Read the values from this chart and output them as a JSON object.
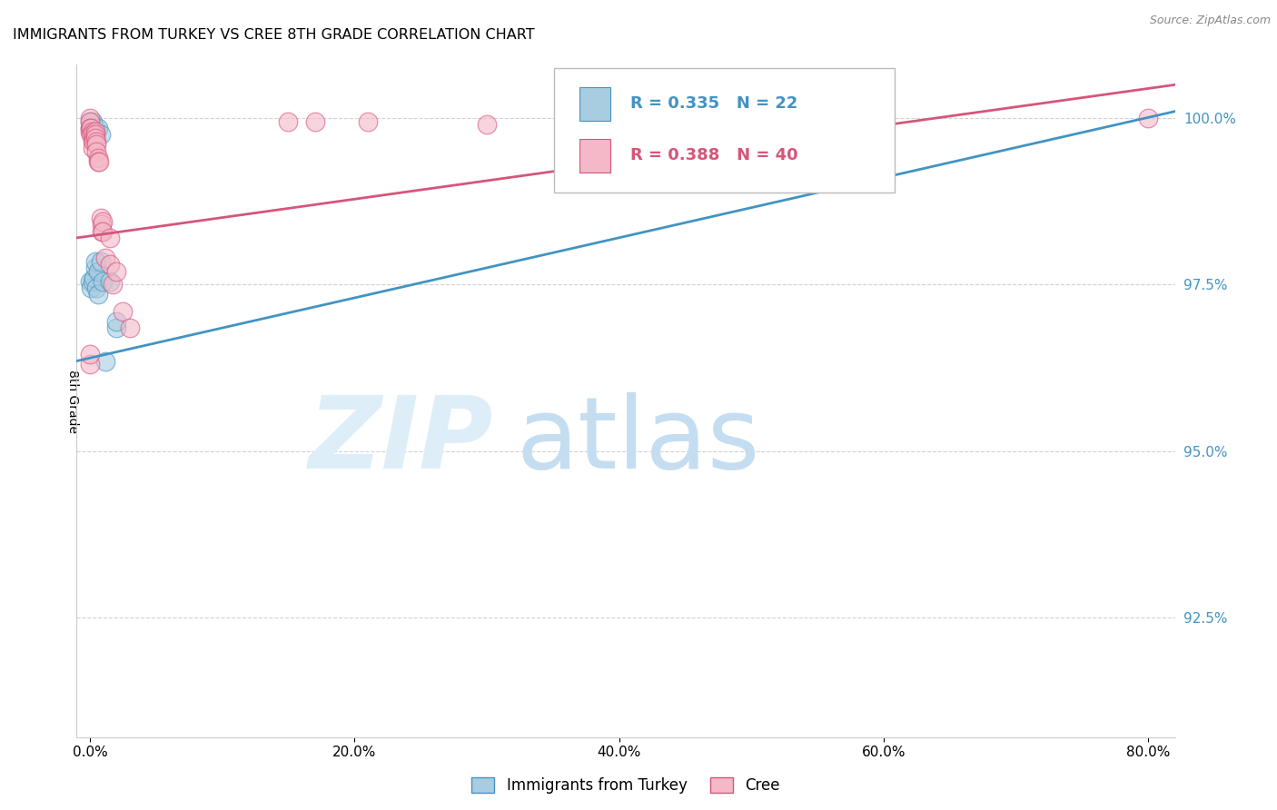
{
  "title": "IMMIGRANTS FROM TURKEY VS CREE 8TH GRADE CORRELATION CHART",
  "source": "Source: ZipAtlas.com",
  "xlim": [
    -0.01,
    0.82
  ],
  "ylim": [
    0.907,
    1.008
  ],
  "ylabel": "8th Grade",
  "x_tick_vals": [
    0.0,
    0.2,
    0.4,
    0.6,
    0.8
  ],
  "x_tick_labels": [
    "0.0%",
    "20.0%",
    "40.0%",
    "60.0%",
    "80.0%"
  ],
  "y_tick_vals": [
    0.925,
    0.95,
    0.975,
    1.0
  ],
  "y_tick_labels": [
    "92.5%",
    "95.0%",
    "97.5%",
    "100.0%"
  ],
  "legend_R_blue": "R = 0.335",
  "legend_N_blue": "N = 22",
  "legend_R_pink": "R = 0.388",
  "legend_N_pink": "N = 40",
  "legend_blue_label": "Immigrants from Turkey",
  "legend_pink_label": "Cree",
  "blue_fill": "#a8cce0",
  "blue_edge": "#4393c3",
  "pink_fill": "#f4b8c8",
  "pink_edge": "#d6557a",
  "trendline_blue": "#4393c3",
  "trendline_pink": "#d6557a",
  "ytick_color": "#4393c3",
  "blue_trendline_x": [
    -0.01,
    0.82
  ],
  "blue_trendline_y": [
    0.9635,
    1.001
  ],
  "pink_trendline_x": [
    -0.01,
    0.82
  ],
  "pink_trendline_y": [
    0.982,
    1.005
  ],
  "blue_scatter": [
    [
      0.0,
      0.9995
    ],
    [
      0.0,
      0.9985
    ],
    [
      0.002,
      0.9995
    ],
    [
      0.004,
      0.9985
    ],
    [
      0.006,
      0.9985
    ],
    [
      0.008,
      0.9975
    ],
    [
      0.0,
      0.9755
    ],
    [
      0.001,
      0.9745
    ],
    [
      0.002,
      0.9755
    ],
    [
      0.003,
      0.976
    ],
    [
      0.004,
      0.9775
    ],
    [
      0.004,
      0.9785
    ],
    [
      0.005,
      0.9745
    ],
    [
      0.006,
      0.977
    ],
    [
      0.006,
      0.9735
    ],
    [
      0.008,
      0.9785
    ],
    [
      0.01,
      0.9755
    ],
    [
      0.015,
      0.9755
    ],
    [
      0.02,
      0.9685
    ],
    [
      0.02,
      0.9695
    ],
    [
      0.012,
      0.9635
    ],
    [
      0.6,
      1.0
    ]
  ],
  "pink_scatter": [
    [
      0.0,
      1.0
    ],
    [
      0.0,
      0.9995
    ],
    [
      0.0,
      0.9985
    ],
    [
      0.0,
      0.998
    ],
    [
      0.001,
      0.9985
    ],
    [
      0.001,
      0.9975
    ],
    [
      0.002,
      0.998
    ],
    [
      0.002,
      0.9975
    ],
    [
      0.002,
      0.9965
    ],
    [
      0.002,
      0.9955
    ],
    [
      0.003,
      0.997
    ],
    [
      0.003,
      0.9965
    ],
    [
      0.004,
      0.998
    ],
    [
      0.004,
      0.9975
    ],
    [
      0.004,
      0.997
    ],
    [
      0.005,
      0.9965
    ],
    [
      0.005,
      0.996
    ],
    [
      0.005,
      0.995
    ],
    [
      0.006,
      0.994
    ],
    [
      0.006,
      0.9935
    ],
    [
      0.007,
      0.9935
    ],
    [
      0.008,
      0.985
    ],
    [
      0.009,
      0.984
    ],
    [
      0.009,
      0.983
    ],
    [
      0.01,
      0.9845
    ],
    [
      0.01,
      0.983
    ],
    [
      0.012,
      0.979
    ],
    [
      0.015,
      0.982
    ],
    [
      0.015,
      0.978
    ],
    [
      0.017,
      0.975
    ],
    [
      0.02,
      0.977
    ],
    [
      0.025,
      0.971
    ],
    [
      0.15,
      0.9995
    ],
    [
      0.17,
      0.9995
    ],
    [
      0.21,
      0.9995
    ],
    [
      0.3,
      0.999
    ],
    [
      0.03,
      0.9685
    ],
    [
      0.0,
      0.963
    ],
    [
      0.0,
      0.9645
    ],
    [
      0.8,
      1.0
    ]
  ]
}
